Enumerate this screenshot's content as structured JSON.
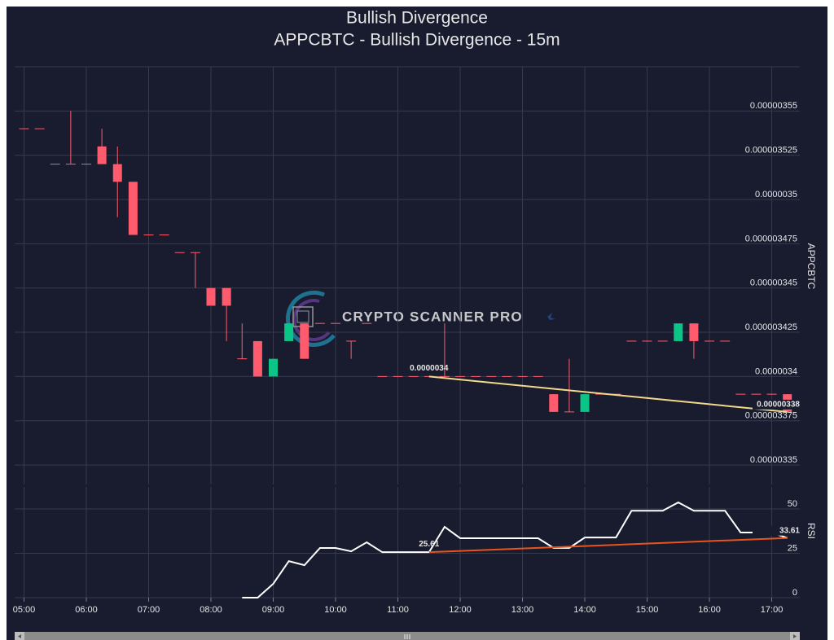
{
  "watermark": "CRYPTO SCANNER PRO",
  "chart_data": [
    {
      "type": "candlestick",
      "title": "Bullish Divergence",
      "subtitle": "APPCBTC - Bullish Divergence - 15m",
      "ylabel": "APPCBTC",
      "x": [
        5,
        5.25,
        5.5,
        5.75,
        6,
        6.25,
        6.5,
        6.75,
        7,
        7.25,
        7.5,
        7.75,
        8,
        8.25,
        8.5,
        8.75,
        9,
        9.25,
        9.5,
        9.75,
        10,
        10.25,
        10.5,
        10.75,
        11,
        11.25,
        11.5,
        11.75,
        12,
        12.25,
        12.5,
        12.75,
        13,
        13.25,
        13.5,
        13.75,
        14,
        14.25,
        14.5,
        14.75,
        15,
        15.25,
        15.5,
        15.75,
        16,
        16.25,
        16.5,
        16.75,
        17,
        17.25
      ],
      "open": [
        3.54e-06,
        3.54e-06,
        3.52e-06,
        3.52e-06,
        3.52e-06,
        3.53e-06,
        3.52e-06,
        3.51e-06,
        3.48e-06,
        3.48e-06,
        3.47e-06,
        3.47e-06,
        3.45e-06,
        3.45e-06,
        3.41e-06,
        3.42e-06,
        3.4e-06,
        3.42e-06,
        3.43e-06,
        3.43e-06,
        3.43e-06,
        3.42e-06,
        3.43e-06,
        3.4e-06,
        3.4e-06,
        3.4e-06,
        3.4e-06,
        3.4e-06,
        3.4e-06,
        3.4e-06,
        3.4e-06,
        3.4e-06,
        3.4e-06,
        3.4e-06,
        3.39e-06,
        3.38e-06,
        3.38e-06,
        3.39e-06,
        3.39e-06,
        3.42e-06,
        3.42e-06,
        3.42e-06,
        3.42e-06,
        3.43e-06,
        3.42e-06,
        3.42e-06,
        3.39e-06,
        3.39e-06,
        3.39e-06,
        3.39e-06
      ],
      "high": [
        3.54e-06,
        3.54e-06,
        3.52e-06,
        3.55e-06,
        3.52e-06,
        3.54e-06,
        3.53e-06,
        3.51e-06,
        3.48e-06,
        3.48e-06,
        3.47e-06,
        3.47e-06,
        3.45e-06,
        3.45e-06,
        3.43e-06,
        3.42e-06,
        3.41e-06,
        3.43e-06,
        3.43e-06,
        3.43e-06,
        3.43e-06,
        3.42e-06,
        3.43e-06,
        3.4e-06,
        3.4e-06,
        3.4e-06,
        3.4e-06,
        3.43e-06,
        3.4e-06,
        3.4e-06,
        3.4e-06,
        3.4e-06,
        3.4e-06,
        3.4e-06,
        3.39e-06,
        3.41e-06,
        3.39e-06,
        3.39e-06,
        3.39e-06,
        3.42e-06,
        3.42e-06,
        3.42e-06,
        3.43e-06,
        3.43e-06,
        3.42e-06,
        3.42e-06,
        3.39e-06,
        3.39e-06,
        3.39e-06,
        3.39e-06
      ],
      "low": [
        3.54e-06,
        3.54e-06,
        3.52e-06,
        3.52e-06,
        3.52e-06,
        3.52e-06,
        3.49e-06,
        3.48e-06,
        3.48e-06,
        3.48e-06,
        3.47e-06,
        3.45e-06,
        3.44e-06,
        3.42e-06,
        3.41e-06,
        3.4e-06,
        3.4e-06,
        3.42e-06,
        3.41e-06,
        3.43e-06,
        3.43e-06,
        3.41e-06,
        3.43e-06,
        3.4e-06,
        3.4e-06,
        3.4e-06,
        3.4e-06,
        3.4e-06,
        3.4e-06,
        3.4e-06,
        3.4e-06,
        3.4e-06,
        3.4e-06,
        3.4e-06,
        3.38e-06,
        3.38e-06,
        3.38e-06,
        3.39e-06,
        3.39e-06,
        3.42e-06,
        3.42e-06,
        3.42e-06,
        3.42e-06,
        3.41e-06,
        3.42e-06,
        3.42e-06,
        3.39e-06,
        3.39e-06,
        3.39e-06,
        3.38e-06
      ],
      "close": [
        3.54e-06,
        3.54e-06,
        3.52e-06,
        3.52e-06,
        3.52e-06,
        3.52e-06,
        3.51e-06,
        3.48e-06,
        3.48e-06,
        3.48e-06,
        3.47e-06,
        3.47e-06,
        3.44e-06,
        3.44e-06,
        3.41e-06,
        3.4e-06,
        3.41e-06,
        3.43e-06,
        3.41e-06,
        3.43e-06,
        3.43e-06,
        3.42e-06,
        3.43e-06,
        3.4e-06,
        3.4e-06,
        3.4e-06,
        3.4e-06,
        3.4e-06,
        3.4e-06,
        3.4e-06,
        3.4e-06,
        3.4e-06,
        3.4e-06,
        3.4e-06,
        3.38e-06,
        3.38e-06,
        3.39e-06,
        3.39e-06,
        3.39e-06,
        3.42e-06,
        3.42e-06,
        3.42e-06,
        3.43e-06,
        3.42e-06,
        3.42e-06,
        3.42e-06,
        3.39e-06,
        3.39e-06,
        3.39e-06,
        3.38e-06
      ],
      "up_color": "#0bc587",
      "down_color": "#ff5b6e",
      "xlim": [
        4.85,
        17.45
      ],
      "ylim": [
        3.339e-06,
        3.575e-06
      ],
      "yticks": [
        3.35e-06,
        3.375e-06,
        3.4e-06,
        3.425e-06,
        3.45e-06,
        3.475e-06,
        3.5e-06,
        3.525e-06,
        3.55e-06
      ],
      "grid": true,
      "trendline": {
        "x": [
          11.5,
          17.25
        ],
        "values": [
          3.4e-06,
          3.38e-06
        ],
        "color": "#f3d98a"
      }
    },
    {
      "type": "line",
      "ylabel": "RSI",
      "color": "#ffffff",
      "x": [
        8.5,
        8.75,
        9,
        9.25,
        9.5,
        9.75,
        10,
        10.25,
        10.5,
        10.75,
        11,
        11.25,
        11.5,
        11.75,
        12,
        12.25,
        12.5,
        12.75,
        13,
        13.25,
        13.5,
        13.75,
        14,
        14.25,
        14.5,
        14.75,
        15,
        15.25,
        15.5,
        15.75,
        16,
        16.25,
        16.5,
        16.75,
        17,
        17.25
      ],
      "values": [
        0,
        0,
        7.8,
        20.6,
        18.3,
        28,
        28,
        26.1,
        31.2,
        25.61,
        25.61,
        25.61,
        25.61,
        39.9,
        33.5,
        33.5,
        33.5,
        33.5,
        33.5,
        33.5,
        28,
        28,
        33.9,
        33.9,
        33.9,
        49,
        49,
        49,
        53.7,
        49,
        49,
        49,
        36.7,
        36.7,
        36.7,
        33.61
      ],
      "xlim": [
        4.85,
        17.45
      ],
      "ylim": [
        0,
        62.4
      ],
      "yticks": [
        0,
        25,
        50
      ],
      "xticks": [
        {
          "value": 5,
          "label": "05:00"
        },
        {
          "value": 6,
          "label": "06:00"
        },
        {
          "value": 7,
          "label": "07:00"
        },
        {
          "value": 8,
          "label": "08:00"
        },
        {
          "value": 9,
          "label": "09:00"
        },
        {
          "value": 10,
          "label": "10:00"
        },
        {
          "value": 11,
          "label": "11:00"
        },
        {
          "value": 12,
          "label": "12:00"
        },
        {
          "value": 13,
          "label": "13:00"
        },
        {
          "value": 14,
          "label": "14:00"
        },
        {
          "value": 15,
          "label": "15:00"
        },
        {
          "value": 16,
          "label": "16:00"
        },
        {
          "value": 17,
          "label": "17:00"
        }
      ],
      "grid": true,
      "trendline": {
        "x": [
          11.5,
          17.25
        ],
        "values": [
          25.61,
          33.61
        ],
        "color": "#e8541c"
      }
    }
  ]
}
